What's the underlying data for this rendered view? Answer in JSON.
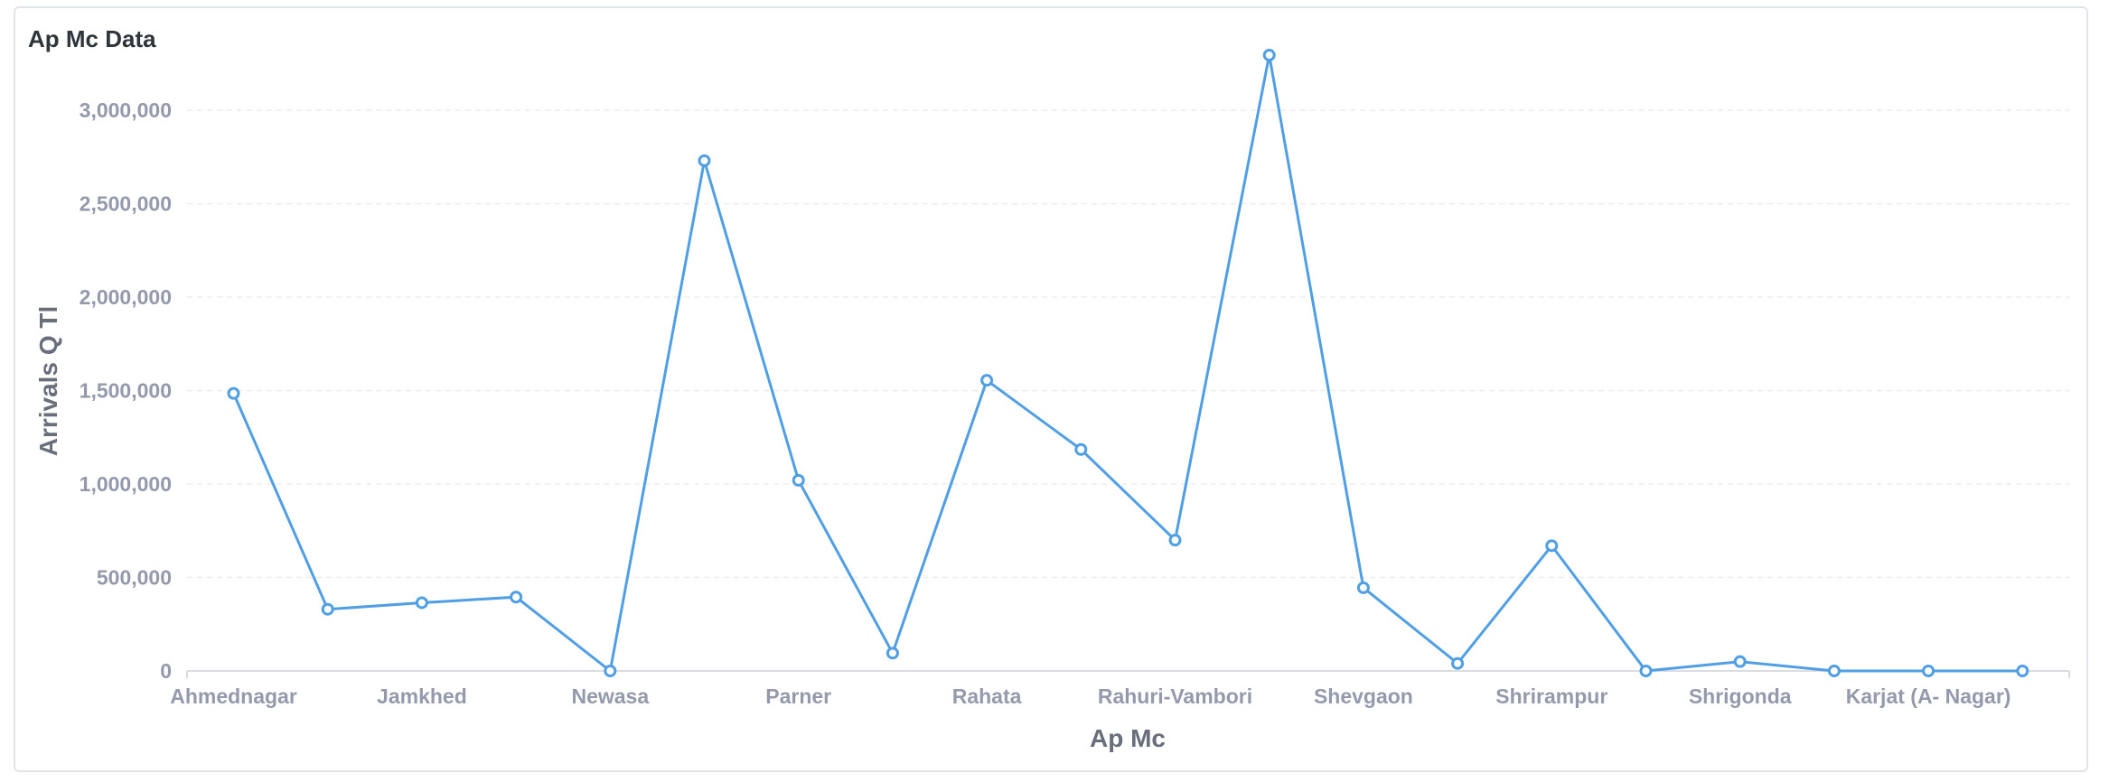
{
  "card": {
    "title": "Ap Mc Data"
  },
  "colors": {
    "series": "#509ee3",
    "grid": "#ecedf0",
    "axis": "#cdd1d8"
  },
  "chart_data": {
    "type": "line",
    "title": "Ap Mc Data",
    "xlabel": "Ap Mc",
    "ylabel": "Arrivals Q Tl",
    "ylim": [
      0,
      3300000
    ],
    "yticks": [
      0,
      500000,
      1000000,
      1500000,
      2000000,
      2500000,
      3000000
    ],
    "ytick_labels": [
      "0",
      "500,000",
      "1,000,000",
      "1,500,000",
      "2,000,000",
      "2,500,000",
      "3,000,000"
    ],
    "grid": true,
    "categories": [
      "Ahmednagar",
      "",
      "Jamkhed",
      "",
      "Newasa",
      "",
      "Parner",
      "",
      "Rahata",
      "",
      "Rahuri-Vambori",
      "",
      "Shevgaon",
      "",
      "Shrirampur",
      "",
      "Shrigonda",
      "",
      "Karjat (A- Nagar)",
      ""
    ],
    "series": [
      {
        "values": [
          1485000,
          330000,
          365000,
          395000,
          0,
          2730000,
          1020000,
          95000,
          1555000,
          1185000,
          700000,
          3295000,
          445000,
          40000,
          670000,
          0,
          50000,
          0,
          0,
          0
        ]
      }
    ]
  }
}
